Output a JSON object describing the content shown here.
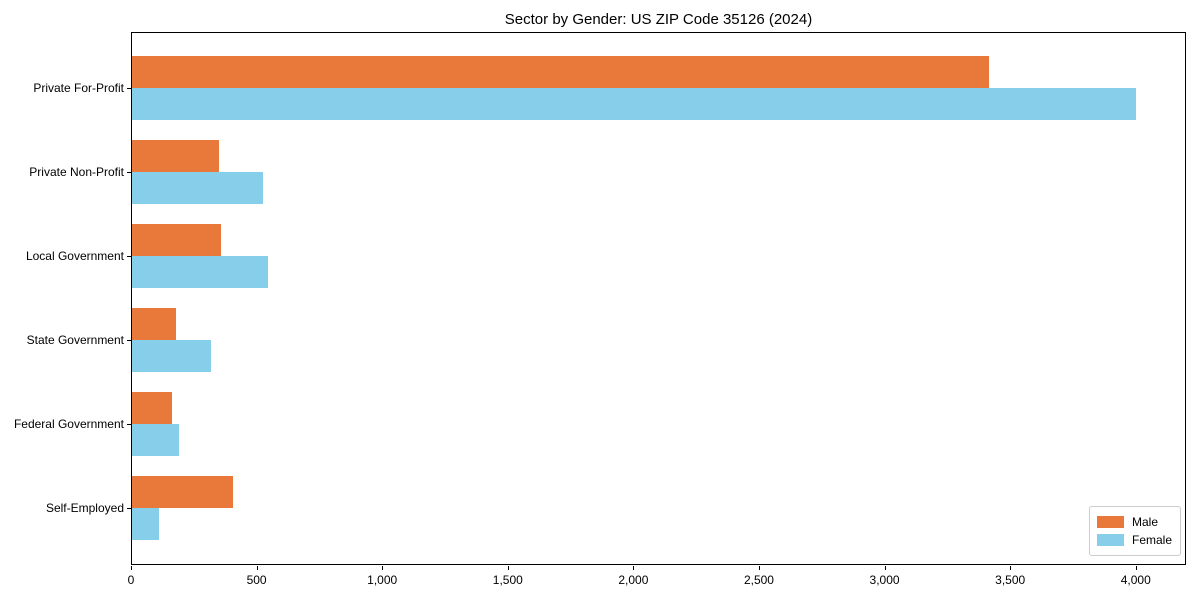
{
  "chart_data": {
    "type": "bar",
    "orientation": "horizontal",
    "title": "Sector by Gender: US ZIP Code 35126 (2024)",
    "categories": [
      "Private For-Profit",
      "Private Non-Profit",
      "Local Government",
      "State Government",
      "Federal Government",
      "Self-Employed"
    ],
    "series": [
      {
        "name": "Male",
        "color": "#E8793B",
        "values": [
          3415,
          350,
          360,
          180,
          165,
          405
        ]
      },
      {
        "name": "Female",
        "color": "#87CEEB",
        "values": [
          4000,
          525,
          545,
          320,
          190,
          110
        ]
      }
    ],
    "xlabel": "",
    "ylabel": "",
    "xlim": [
      0,
      4200
    ],
    "x_ticks": [
      0,
      500,
      1000,
      1500,
      2000,
      2500,
      3000,
      3500,
      4000
    ],
    "x_tick_labels": [
      "0",
      "500",
      "1,000",
      "1,500",
      "2,000",
      "2,500",
      "3,000",
      "3,500",
      "4,000"
    ],
    "grid": false,
    "legend": {
      "position": "lower right",
      "entries": [
        "Male",
        "Female"
      ]
    }
  }
}
